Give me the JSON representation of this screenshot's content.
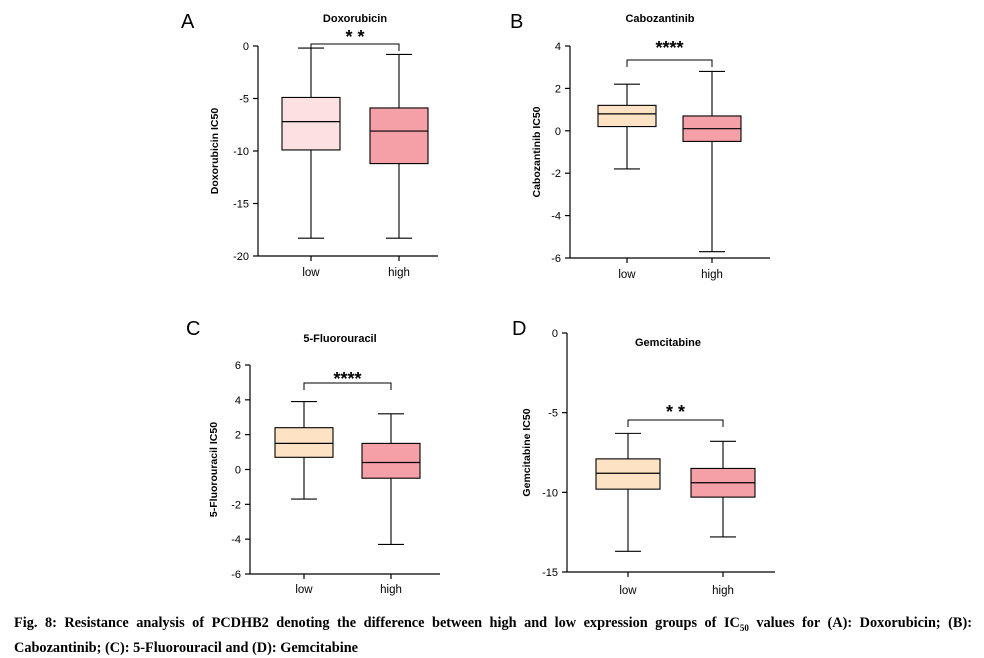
{
  "chart_data": [
    {
      "type": "box",
      "panel": "A",
      "title": "Doxorubicin",
      "xlabel": "",
      "ylabel": "Doxorubicin IC50",
      "ylim": [
        -20,
        0
      ],
      "yticks": [
        0,
        -5,
        -10,
        -15,
        -20
      ],
      "categories": [
        "low",
        "high"
      ],
      "series": [
        {
          "name": "low",
          "whisker_low": -18.3,
          "q1": -9.9,
          "median": -7.2,
          "q3": -4.9,
          "whisker_high": -0.2,
          "color": "#fde0e2"
        },
        {
          "name": "high",
          "whisker_low": -18.3,
          "q1": -11.2,
          "median": -8.1,
          "q3": -5.9,
          "whisker_high": -0.8,
          "color": "#f5a0a6"
        }
      ],
      "significance": "* *"
    },
    {
      "type": "box",
      "panel": "B",
      "title": "Cabozantinib",
      "xlabel": "",
      "ylabel": "Cabozantinib IC50",
      "ylim": [
        -6,
        4
      ],
      "yticks": [
        4,
        2,
        0,
        -2,
        -4,
        -6
      ],
      "categories": [
        "low",
        "high"
      ],
      "series": [
        {
          "name": "low",
          "whisker_low": -1.8,
          "q1": 0.2,
          "median": 0.8,
          "q3": 1.2,
          "whisker_high": 2.2,
          "color": "#fde3c4"
        },
        {
          "name": "high",
          "whisker_low": -5.7,
          "q1": -0.5,
          "median": 0.1,
          "q3": 0.7,
          "whisker_high": 2.8,
          "color": "#f5a0a6"
        }
      ],
      "significance": "****"
    },
    {
      "type": "box",
      "panel": "C",
      "title": "5-Fluorouracil",
      "xlabel": "",
      "ylabel": "5-Fluorouracil IC50",
      "ylim": [
        -6,
        6
      ],
      "yticks": [
        6,
        4,
        2,
        0,
        -2,
        -4,
        -6
      ],
      "categories": [
        "low",
        "high"
      ],
      "series": [
        {
          "name": "low",
          "whisker_low": -1.7,
          "q1": 0.7,
          "median": 1.5,
          "q3": 2.4,
          "whisker_high": 3.9,
          "color": "#fde3c4"
        },
        {
          "name": "high",
          "whisker_low": -4.3,
          "q1": -0.5,
          "median": 0.4,
          "q3": 1.5,
          "whisker_high": 3.2,
          "color": "#f5a0a6"
        }
      ],
      "significance": "****"
    },
    {
      "type": "box",
      "panel": "D",
      "title": "Gemcitabine",
      "xlabel": "",
      "ylabel": "Gemcitabine IC50",
      "ylim": [
        -15,
        0
      ],
      "yticks": [
        0,
        -5,
        -10,
        -15
      ],
      "categories": [
        "low",
        "high"
      ],
      "series": [
        {
          "name": "low",
          "whisker_low": -13.7,
          "q1": -9.8,
          "median": -8.8,
          "q3": -7.9,
          "whisker_high": -6.3,
          "color": "#fde3c4"
        },
        {
          "name": "high",
          "whisker_low": -12.8,
          "q1": -10.3,
          "median": -9.4,
          "q3": -8.5,
          "whisker_high": -6.8,
          "color": "#f5a0a6"
        }
      ],
      "significance": "* *"
    }
  ],
  "caption": {
    "lead": "Fig. 8: Resistance analysis of PCDHB2 denoting the difference between high and low expression groups of IC",
    "subscript": "50",
    "rest": " values for (A): Doxorubicin; (B): Cabozantinib; (C): 5-Fluorouracil and (D): Gemcitabine"
  }
}
